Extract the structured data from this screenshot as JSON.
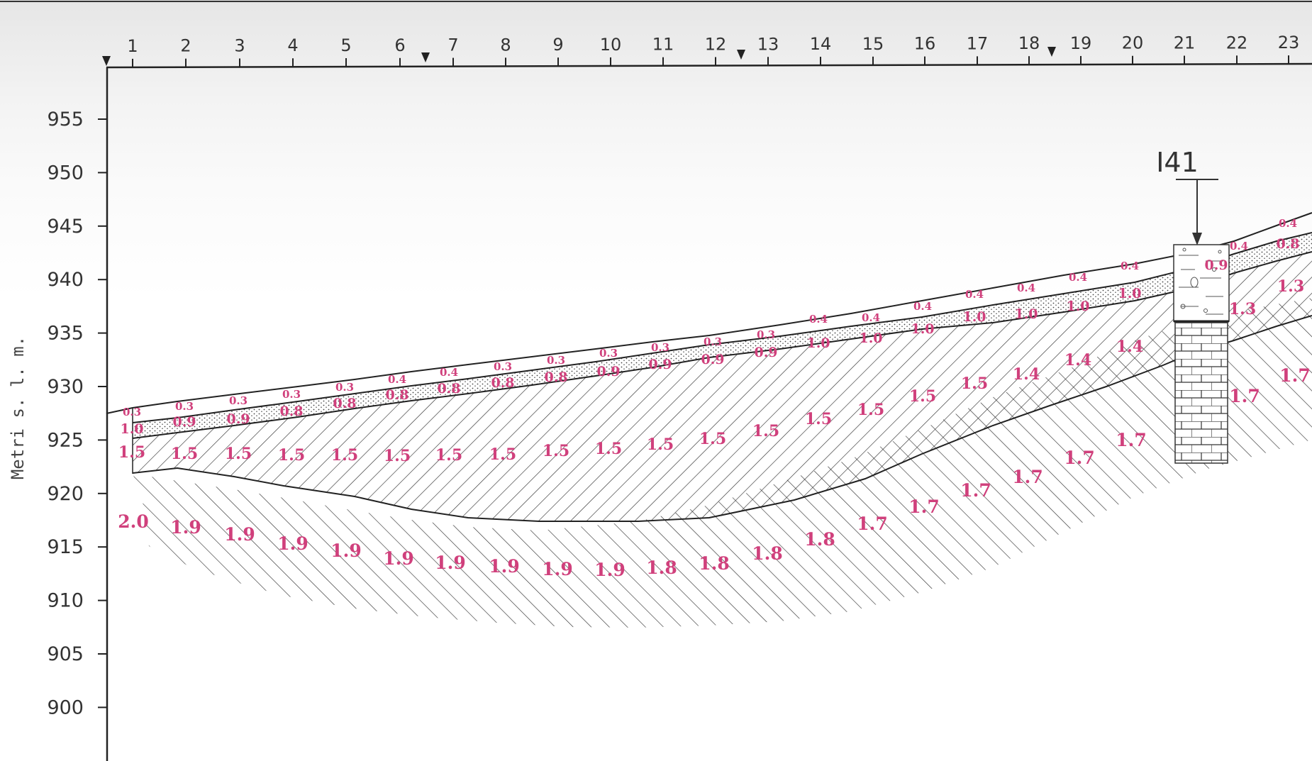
{
  "y_axis": {
    "title": "Metri s. l. m.",
    "ticks": [
      "955",
      "950",
      "945",
      "940",
      "935",
      "930",
      "925",
      "920",
      "915",
      "910",
      "905",
      "900"
    ]
  },
  "x_axis": {
    "ticks": [
      "1",
      "2",
      "3",
      "4",
      "5",
      "6",
      "7",
      "8",
      "9",
      "10",
      "11",
      "12",
      "13",
      "14",
      "15",
      "16",
      "17",
      "18",
      "19",
      "20",
      "21",
      "22",
      "23"
    ]
  },
  "well": {
    "label": "I41"
  },
  "layers": {
    "top": [
      "0.3",
      "0.3",
      "0.3",
      "0.3",
      "0.3",
      "0.4",
      "0.4",
      "0.3",
      "0.3",
      "0.3",
      "0.3",
      "0.3",
      "0.3",
      "0.4",
      "0.4",
      "0.4",
      "0.4",
      "0.4",
      "0.4",
      "0.4",
      "0.4",
      "0.4"
    ],
    "second": [
      "1.0",
      "0.9",
      "0.9",
      "0.8",
      "0.8",
      "0.8",
      "0.8",
      "0.8",
      "0.8",
      "0.9",
      "0.9",
      "0.9",
      "0.9",
      "1.0",
      "1.0",
      "1.0",
      "1.0",
      "1.0",
      "1.0",
      "1.0",
      "0.9",
      "0.8"
    ],
    "third": [
      "1.5",
      "1.5",
      "1.5",
      "1.5",
      "1.5",
      "1.5",
      "1.5",
      "1.5",
      "1.5",
      "1.5",
      "1.5",
      "1.5",
      "1.5",
      "1.5",
      "1.5",
      "1.5",
      "1.5",
      "1.4",
      "1.4",
      "1.4",
      "1.3",
      "1.3"
    ],
    "fourth": [
      "2.0",
      "1.9",
      "1.9",
      "1.9",
      "1.9",
      "1.9",
      "1.9",
      "1.9",
      "1.9",
      "1.9",
      "1.8",
      "1.8",
      "1.8",
      "1.8",
      "1.7",
      "1.7",
      "1.7",
      "1.7",
      "1.7",
      "1.7",
      "1.7",
      "1.7"
    ]
  }
}
